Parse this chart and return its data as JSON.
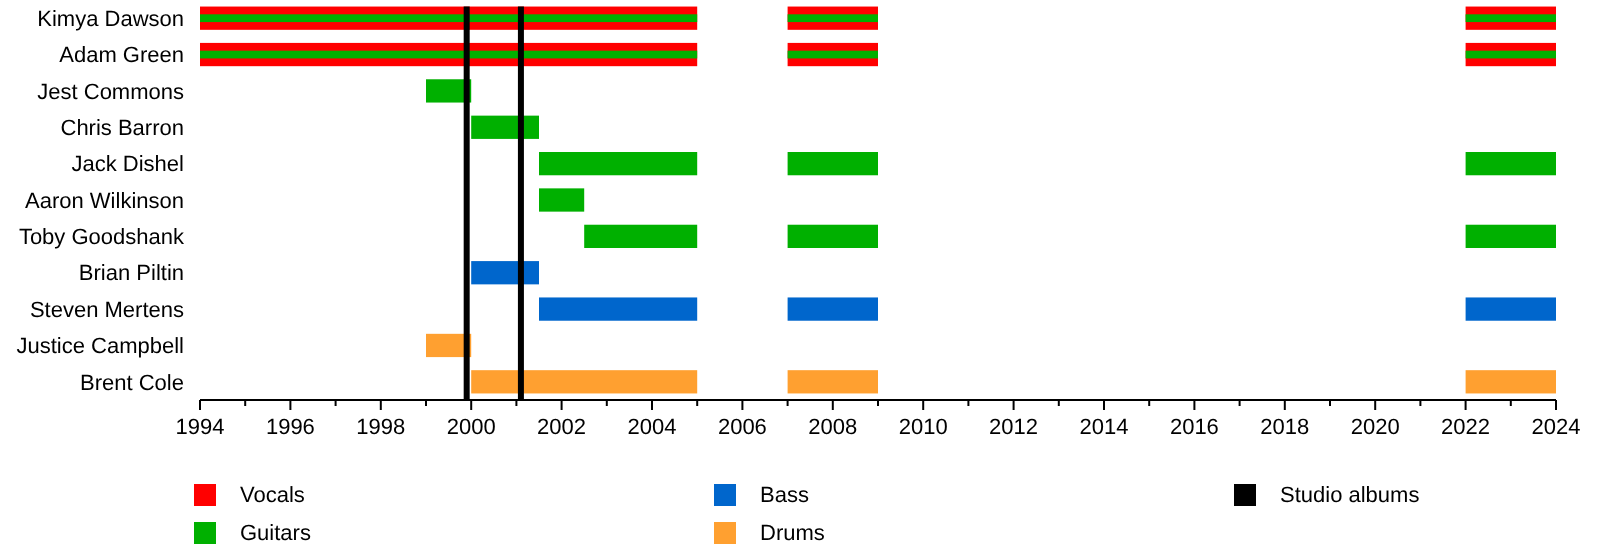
{
  "chart_data": {
    "type": "bar",
    "orientation": "horizontal",
    "categories": [
      "Kimya Dawson",
      "Adam Green",
      "Jest Commons",
      "Chris Barron",
      "Jack Dishel",
      "Aaron Wilkinson",
      "Toby Goodshank",
      "Brian Piltin",
      "Steven Mertens",
      "Justice Campbell",
      "Brent Cole"
    ],
    "series": [
      {
        "name": "Vocals",
        "color": "#ff0000",
        "base": [
          1994,
          1994,
          null,
          null,
          null,
          null,
          null,
          null,
          null,
          null,
          null
        ],
        "values": [
          11,
          11,
          null,
          null,
          null,
          null,
          null,
          null,
          null,
          null,
          null
        ]
      },
      {
        "color": "#ff0000",
        "base": [
          2007,
          2007,
          null,
          null,
          null,
          null,
          null,
          null,
          null,
          null,
          null
        ],
        "values": [
          2,
          2,
          null,
          null,
          null,
          null,
          null,
          null,
          null,
          null,
          null
        ]
      },
      {
        "color": "#ff0000",
        "base": [
          2022,
          2022,
          null,
          null,
          null,
          null,
          null,
          null,
          null,
          null,
          null
        ],
        "values": [
          2,
          2,
          null,
          null,
          null,
          null,
          null,
          null,
          null,
          null,
          null
        ]
      },
      {
        "name": "Guitars",
        "color": "#00b000",
        "base": [
          1994,
          1994,
          1999,
          2000,
          2001.5,
          2001.5,
          2002.5,
          null,
          null,
          null,
          null
        ],
        "values": [
          11,
          11,
          1,
          1.5,
          3.5,
          1,
          2.5,
          null,
          null,
          null,
          null
        ]
      },
      {
        "color": "#00b000",
        "base": [
          2007,
          2007,
          null,
          null,
          2007,
          null,
          2007,
          null,
          null,
          null,
          null
        ],
        "values": [
          2,
          2,
          null,
          null,
          2,
          null,
          2,
          null,
          null,
          null,
          null
        ]
      },
      {
        "color": "#00b000",
        "base": [
          2022,
          2022,
          null,
          null,
          2022,
          null,
          2022,
          null,
          null,
          null,
          null
        ],
        "values": [
          2,
          2,
          null,
          null,
          2,
          null,
          2,
          null,
          null,
          null,
          null
        ]
      },
      {
        "name": "Bass",
        "color": "#0066cc",
        "base": [
          null,
          null,
          null,
          null,
          null,
          null,
          null,
          2000,
          2001.5,
          null,
          null
        ],
        "values": [
          null,
          null,
          null,
          null,
          null,
          null,
          null,
          1.5,
          3.5,
          null,
          null
        ]
      },
      {
        "color": "#0066cc",
        "base": [
          null,
          null,
          null,
          null,
          null,
          null,
          null,
          null,
          2007,
          null,
          null
        ],
        "values": [
          null,
          null,
          null,
          null,
          null,
          null,
          null,
          null,
          2,
          null,
          null
        ]
      },
      {
        "color": "#0066cc",
        "base": [
          null,
          null,
          null,
          null,
          null,
          null,
          null,
          null,
          2022,
          null,
          null
        ],
        "values": [
          null,
          null,
          null,
          null,
          null,
          null,
          null,
          null,
          2,
          null,
          null
        ]
      },
      {
        "name": "Drums",
        "color": "#ffa030",
        "base": [
          null,
          null,
          null,
          null,
          null,
          null,
          null,
          null,
          null,
          1999,
          2000
        ],
        "values": [
          null,
          null,
          null,
          null,
          null,
          null,
          null,
          null,
          null,
          1,
          5
        ]
      },
      {
        "color": "#ffa030",
        "base": [
          null,
          null,
          null,
          null,
          null,
          null,
          null,
          null,
          null,
          null,
          2007
        ],
        "values": [
          null,
          null,
          null,
          null,
          null,
          null,
          null,
          null,
          null,
          null,
          2
        ]
      },
      {
        "color": "#ffa030",
        "base": [
          null,
          null,
          null,
          null,
          null,
          null,
          null,
          null,
          null,
          null,
          2022
        ],
        "values": [
          null,
          null,
          null,
          null,
          null,
          null,
          null,
          null,
          null,
          null,
          2
        ]
      }
    ],
    "ref_lines": [
      {
        "axis": "x",
        "value": 1999.9,
        "label": "Studio albums",
        "color": "#000000"
      },
      {
        "axis": "x",
        "value": 2001.1,
        "color": "#000000"
      }
    ],
    "xlim": [
      1994,
      2024
    ],
    "xticks": [
      1994,
      {
        "value": 1995,
        "label": null
      },
      1996,
      {
        "value": 1997,
        "label": null
      },
      1998,
      {
        "value": 1999,
        "label": null
      },
      2000,
      {
        "value": 2001,
        "label": null
      },
      2002,
      {
        "value": 2003,
        "label": null
      },
      2004,
      {
        "value": 2005,
        "label": null
      },
      2006,
      {
        "value": 2007,
        "label": null
      },
      2008,
      {
        "value": 2009,
        "label": null
      },
      2010,
      {
        "value": 2011,
        "label": null
      },
      2012,
      {
        "value": 2013,
        "label": null
      },
      2014,
      {
        "value": 2015,
        "label": null
      },
      2016,
      {
        "value": 2017,
        "label": null
      },
      2018,
      {
        "value": 2019,
        "label": null
      },
      2020,
      {
        "value": 2021,
        "label": null
      },
      2022,
      {
        "value": 2023,
        "label": null
      },
      2024
    ],
    "grid": false,
    "legend": "bottom"
  }
}
